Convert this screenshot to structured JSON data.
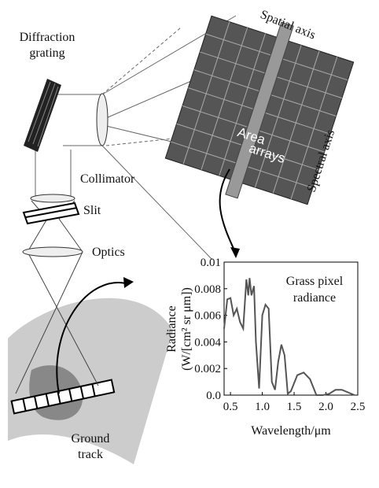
{
  "labels": {
    "diffraction_grating": [
      "Diffraction",
      "grating"
    ],
    "collimator": "Collimator",
    "slit": "Slit",
    "optics": "Optics",
    "ground_track": [
      "Ground",
      "track"
    ],
    "spatial_axis": "Spatial axis",
    "spectral_axis": "Spectral axis",
    "area_arrays": [
      "Area",
      "arrays"
    ]
  },
  "chart_data": {
    "type": "line",
    "title": [
      "Grass pixel",
      "radiance"
    ],
    "ylabel": [
      "Radiance",
      "(W/[cm² sr μm])"
    ],
    "xlabel": "Wavelength/μm",
    "xlim": [
      0.4,
      2.5
    ],
    "ylim": [
      0,
      0.01
    ],
    "xticks": [
      0.5,
      {
        "value": 1.0,
        "label": "1.0"
      },
      1.5,
      {
        "value": 2.0,
        "label": "2.0"
      },
      2.5
    ],
    "yticks": [
      {
        "value": 0,
        "label": "0.0"
      },
      0.002,
      0.004,
      0.006,
      0.008,
      0.01
    ],
    "series": [
      {
        "color": "#555555",
        "x": [
          0.4,
          0.45,
          0.5,
          0.55,
          0.6,
          0.65,
          0.7,
          0.75,
          0.78,
          0.8,
          0.83,
          0.87,
          0.9,
          0.95,
          1.0,
          1.05,
          1.1,
          1.15,
          1.2,
          1.25,
          1.3,
          1.35,
          1.4,
          1.45,
          1.55,
          1.65,
          1.75,
          1.85,
          1.95,
          2.05,
          2.15,
          2.25,
          2.35,
          2.45
        ],
        "values": [
          0.005,
          0.0072,
          0.0073,
          0.006,
          0.0065,
          0.0055,
          0.005,
          0.0087,
          0.0075,
          0.0088,
          0.0075,
          0.0082,
          0.004,
          0.0005,
          0.006,
          0.0068,
          0.0065,
          0.001,
          0.0004,
          0.0025,
          0.0038,
          0.003,
          0.0001,
          0.0003,
          0.0015,
          0.0017,
          0.0012,
          0,
          0,
          0.0001,
          0.0004,
          0.0004,
          0.0002,
          0
        ]
      }
    ]
  }
}
